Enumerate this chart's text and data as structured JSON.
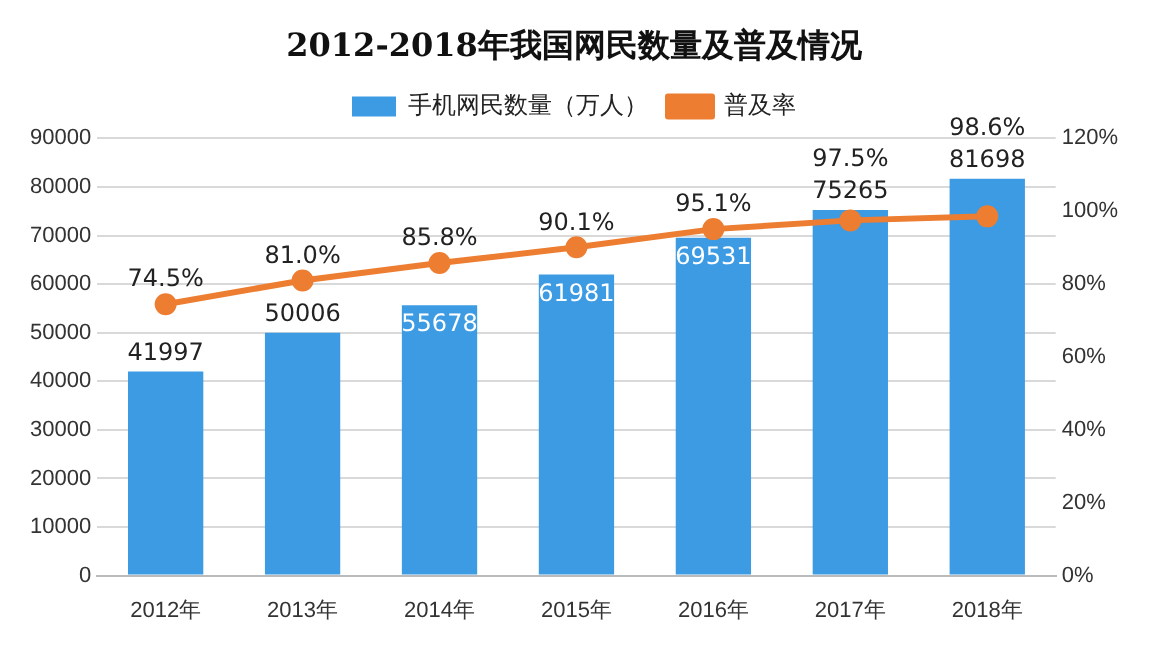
{
  "chart_data": {
    "type": "bar",
    "title": "2012-2018年我国网民数量及普及情况",
    "categories": [
      "2012年",
      "2013年",
      "2014年",
      "2015年",
      "2016年",
      "2017年",
      "2018年"
    ],
    "series": [
      {
        "name": "手机网民数量（万人）",
        "color": "#3d9be3",
        "values": [
          41997,
          50006,
          55678,
          61981,
          69531,
          75265,
          81698
        ],
        "value_labels": [
          "41997",
          "50006",
          "55678",
          "61981",
          "69531",
          "75265",
          "81698"
        ]
      },
      {
        "name": "普及率",
        "type": "line",
        "axis": "y2",
        "color": "#ed7d31",
        "marker": "circle",
        "values": [
          74.5,
          81.0,
          85.8,
          90.1,
          95.1,
          97.5,
          98.6
        ],
        "value_labels": [
          "74.5%",
          "81.0%",
          "85.8%",
          "90.1%",
          "95.1%",
          "97.5%",
          "98.6%"
        ]
      }
    ],
    "ylim": [
      0,
      90000
    ],
    "yticks": [
      0,
      10000,
      20000,
      30000,
      40000,
      50000,
      60000,
      70000,
      80000,
      90000
    ],
    "y2lim": [
      0,
      120
    ],
    "y2ticks": [
      {
        "value": 0,
        "label": "0%"
      },
      {
        "value": 20,
        "label": "20%"
      },
      {
        "value": 40,
        "label": "40%"
      },
      {
        "value": 60,
        "label": "60%"
      },
      {
        "value": 80,
        "label": "80%"
      },
      {
        "value": 100,
        "label": "100%"
      },
      {
        "value": 120,
        "label": "120%"
      }
    ],
    "grid": "y",
    "legend": "top"
  }
}
